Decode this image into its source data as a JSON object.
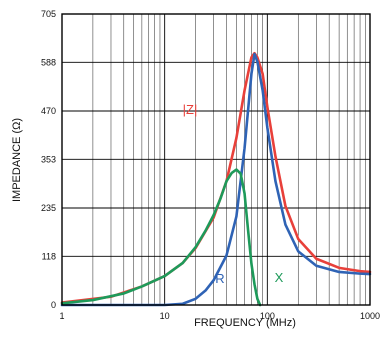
{
  "chart_data": {
    "type": "line",
    "title": "",
    "xlabel": "FREQUENCY (MHz)",
    "ylabel": "IMPEDANCE (Ω)",
    "xscale": "log",
    "xlim": [
      1,
      1000
    ],
    "ylim": [
      0,
      705
    ],
    "x_ticks": [
      "1",
      "10",
      "100",
      "1000"
    ],
    "y_ticks": [
      "0",
      "118",
      "235",
      "353",
      "470",
      "588",
      "705"
    ],
    "grid": true,
    "series": [
      {
        "name": "|Z|",
        "color": "#e8403a",
        "points": [
          [
            1,
            6
          ],
          [
            3,
            20
          ],
          [
            6,
            45
          ],
          [
            10,
            70
          ],
          [
            15,
            102
          ],
          [
            20,
            138
          ],
          [
            30,
            212
          ],
          [
            40,
            300
          ],
          [
            50,
            405
          ],
          [
            60,
            520
          ],
          [
            70,
            600
          ],
          [
            75,
            610
          ],
          [
            80,
            600
          ],
          [
            90,
            560
          ],
          [
            100,
            480
          ],
          [
            120,
            360
          ],
          [
            150,
            240
          ],
          [
            200,
            160
          ],
          [
            300,
            112
          ],
          [
            500,
            90
          ],
          [
            800,
            82
          ],
          [
            1000,
            80
          ]
        ]
      },
      {
        "name": "R",
        "color": "#2f63b5",
        "points": [
          [
            1,
            0
          ],
          [
            10,
            0
          ],
          [
            15,
            3
          ],
          [
            20,
            15
          ],
          [
            25,
            35
          ],
          [
            30,
            60
          ],
          [
            40,
            120
          ],
          [
            50,
            215
          ],
          [
            60,
            380
          ],
          [
            70,
            560
          ],
          [
            75,
            608
          ],
          [
            80,
            590
          ],
          [
            90,
            520
          ],
          [
            100,
            430
          ],
          [
            120,
            300
          ],
          [
            150,
            195
          ],
          [
            200,
            130
          ],
          [
            300,
            95
          ],
          [
            500,
            80
          ],
          [
            800,
            76
          ],
          [
            1000,
            75
          ]
        ]
      },
      {
        "name": "X",
        "color": "#1e9a5a",
        "points": [
          [
            1,
            4
          ],
          [
            2,
            12
          ],
          [
            4,
            28
          ],
          [
            6,
            45
          ],
          [
            10,
            70
          ],
          [
            15,
            102
          ],
          [
            20,
            140
          ],
          [
            25,
            180
          ],
          [
            30,
            218
          ],
          [
            35,
            258
          ],
          [
            40,
            300
          ],
          [
            45,
            320
          ],
          [
            50,
            328
          ],
          [
            55,
            318
          ],
          [
            60,
            270
          ],
          [
            65,
            180
          ],
          [
            70,
            100
          ],
          [
            75,
            50
          ],
          [
            80,
            15
          ],
          [
            85,
            0
          ]
        ]
      }
    ],
    "labels": {
      "z": "|Z|",
      "r": "R",
      "x": "X"
    }
  }
}
